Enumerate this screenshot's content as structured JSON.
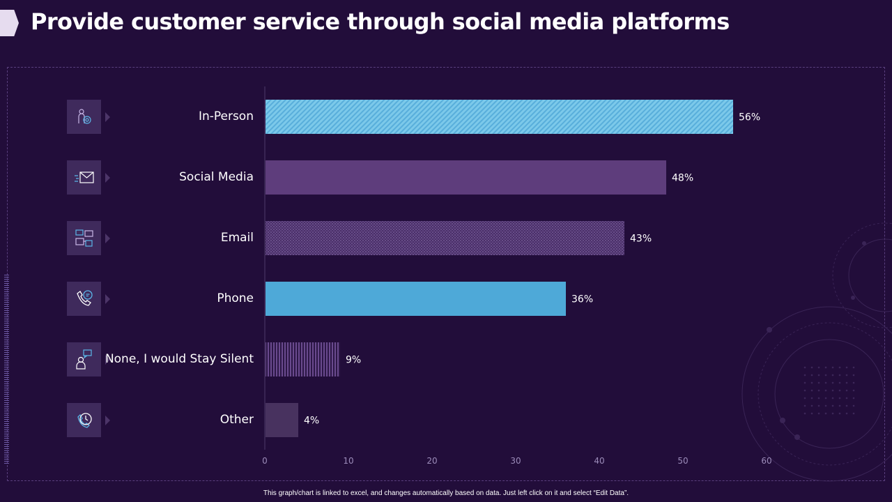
{
  "page": {
    "title": "Provide customer service through social media platforms",
    "footer": "This graph/chart is linked to excel, and changes automatically based on data. Just left click on it and select “Edit Data”."
  },
  "categories": [
    {
      "label": "In-Person",
      "icon": "person-gear-icon"
    },
    {
      "label": "Social Media",
      "icon": "envelope-fast-icon"
    },
    {
      "label": "Email",
      "icon": "email-chat-icon"
    },
    {
      "label": "Phone",
      "icon": "phone-chat-icon"
    },
    {
      "label": "None, I would Stay Silent",
      "icon": "person-speech-icon"
    },
    {
      "label": "Other",
      "icon": "clock-phone-icon"
    }
  ],
  "chart_data": {
    "type": "bar",
    "orientation": "horizontal",
    "categories": [
      "In-Person",
      "Social Media",
      "Email",
      "Phone",
      "None, I would Stay Silent",
      "Other"
    ],
    "values": [
      56,
      48,
      43,
      36,
      9,
      4
    ],
    "data_labels": [
      "56%",
      "48%",
      "43%",
      "36%",
      "9%",
      "4%"
    ],
    "xlim": [
      0,
      60
    ],
    "xticks": [
      0,
      10,
      20,
      30,
      40,
      50,
      60
    ],
    "grid": false,
    "bar_styles": [
      "diagonal-hatch",
      "solid",
      "dotted",
      "solid",
      "vertical-lines",
      "solid"
    ],
    "bar_colors": [
      "#6fc3e6",
      "#5e3d7c",
      "#5e3d7c",
      "#4ea9d8",
      "#5e3d7c",
      "#48325f"
    ]
  },
  "colors": {
    "background": "#220d3a",
    "accent_blue": "#4ea9d8",
    "accent_purple": "#5e3d7c"
  }
}
